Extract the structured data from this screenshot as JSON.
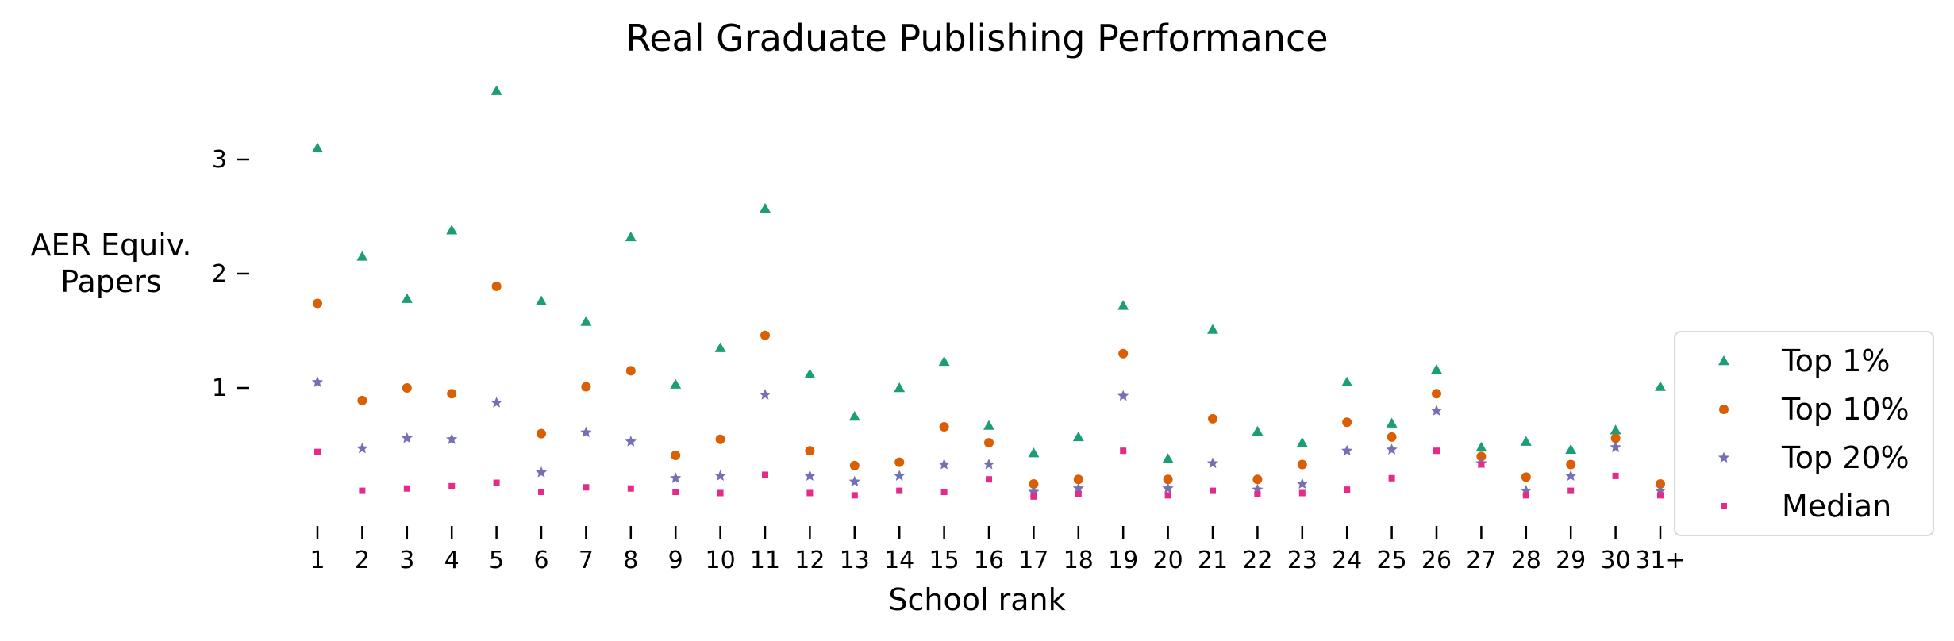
{
  "chart_data": {
    "type": "scatter",
    "title": "Real Graduate Publishing Performance",
    "xlabel": "School rank",
    "ylabel_lines": [
      "AER Equiv.",
      "Papers"
    ],
    "categories": [
      "1",
      "2",
      "3",
      "4",
      "5",
      "6",
      "7",
      "8",
      "9",
      "10",
      "11",
      "12",
      "13",
      "14",
      "15",
      "16",
      "17",
      "18",
      "19",
      "20",
      "21",
      "22",
      "23",
      "24",
      "25",
      "26",
      "27",
      "28",
      "29",
      "30",
      "31+"
    ],
    "yticks": [
      1,
      2,
      3
    ],
    "ylim": [
      0,
      3.6
    ],
    "grid": false,
    "legend_position": "right",
    "series": [
      {
        "name": "Top 1%",
        "color": "#1b9e77",
        "marker": "triangle",
        "values": [
          3.1,
          2.15,
          1.78,
          2.38,
          3.6,
          1.76,
          1.58,
          2.32,
          1.03,
          1.35,
          2.57,
          1.12,
          0.75,
          1.0,
          1.23,
          0.67,
          0.43,
          0.57,
          1.72,
          0.38,
          1.51,
          0.62,
          0.52,
          1.05,
          0.69,
          1.16,
          0.48,
          0.53,
          0.46,
          0.63,
          1.01
        ]
      },
      {
        "name": "Top 10%",
        "color": "#d95f02",
        "marker": "circle",
        "values": [
          1.74,
          0.89,
          1.0,
          0.95,
          1.89,
          0.6,
          1.01,
          1.15,
          0.41,
          0.55,
          1.46,
          0.45,
          0.32,
          0.35,
          0.66,
          0.52,
          0.16,
          0.2,
          1.3,
          0.2,
          0.73,
          0.2,
          0.33,
          0.7,
          0.57,
          0.95,
          0.4,
          0.22,
          0.33,
          0.56,
          0.16
        ]
      },
      {
        "name": "Top 20%",
        "color": "#7570b3",
        "marker": "star",
        "values": [
          1.05,
          0.47,
          0.56,
          0.55,
          0.87,
          0.26,
          0.61,
          0.53,
          0.21,
          0.23,
          0.94,
          0.23,
          0.18,
          0.23,
          0.33,
          0.33,
          0.09,
          0.12,
          0.93,
          0.12,
          0.34,
          0.11,
          0.16,
          0.45,
          0.46,
          0.8,
          0.34,
          0.1,
          0.23,
          0.48,
          0.1
        ]
      },
      {
        "name": "Median",
        "color": "#e7298a",
        "marker": "square",
        "values": [
          0.44,
          0.1,
          0.12,
          0.14,
          0.17,
          0.09,
          0.13,
          0.12,
          0.09,
          0.08,
          0.24,
          0.08,
          0.06,
          0.1,
          0.09,
          0.2,
          0.05,
          0.07,
          0.45,
          0.06,
          0.1,
          0.07,
          0.08,
          0.11,
          0.21,
          0.45,
          0.33,
          0.06,
          0.1,
          0.23,
          0.06
        ]
      }
    ]
  }
}
